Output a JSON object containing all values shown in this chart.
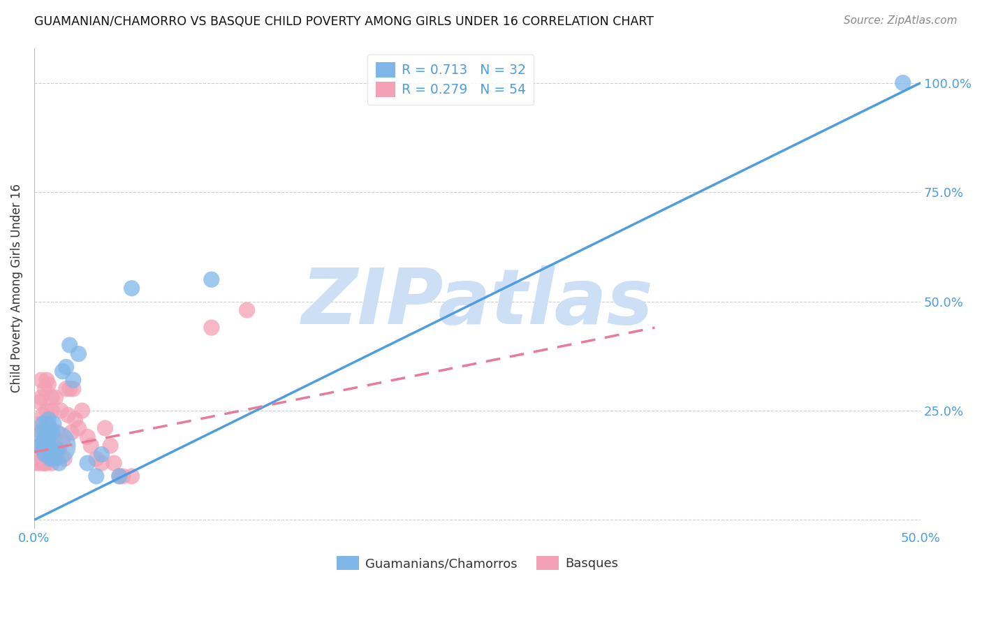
{
  "title": "GUAMANIAN/CHAMORRO VS BASQUE CHILD POVERTY AMONG GIRLS UNDER 16 CORRELATION CHART",
  "source": "Source: ZipAtlas.com",
  "ylabel": "Child Poverty Among Girls Under 16",
  "xlim": [
    0.0,
    0.5
  ],
  "ylim": [
    -0.02,
    1.08
  ],
  "xticks": [
    0.0,
    0.1,
    0.2,
    0.3,
    0.4,
    0.5
  ],
  "xtick_labels": [
    "0.0%",
    "",
    "",
    "",
    "",
    "50.0%"
  ],
  "yticks": [
    0.0,
    0.25,
    0.5,
    0.75,
    1.0
  ],
  "ytick_labels_right": [
    "",
    "25.0%",
    "50.0%",
    "75.0%",
    "100.0%"
  ],
  "guamanian_R": 0.713,
  "guamanian_N": 32,
  "basque_R": 0.279,
  "basque_N": 54,
  "guamanian_color": "#7eb6e8",
  "basque_color": "#f4a0b5",
  "guamanian_line_color": "#4d9de0",
  "basque_line_color": "#e87a9a",
  "watermark": "ZIPatlas",
  "watermark_color": "#ccdff5",
  "legend_label_guamanian": "Guamanians/Chamorros",
  "legend_label_basque": "Basques",
  "tick_color": "#4d9de0",
  "guamanian_x": [
    0.003,
    0.004,
    0.005,
    0.005,
    0.006,
    0.006,
    0.007,
    0.007,
    0.008,
    0.008,
    0.008,
    0.009,
    0.009,
    0.01,
    0.01,
    0.011,
    0.011,
    0.012,
    0.013,
    0.014,
    0.016,
    0.018,
    0.02,
    0.022,
    0.025,
    0.03,
    0.035,
    0.038,
    0.048,
    0.055,
    0.1,
    0.49
  ],
  "guamanian_y": [
    0.17,
    0.2,
    0.18,
    0.22,
    0.15,
    0.2,
    0.18,
    0.22,
    0.16,
    0.19,
    0.23,
    0.14,
    0.21,
    0.16,
    0.2,
    0.14,
    0.22,
    0.17,
    0.16,
    0.13,
    0.34,
    0.35,
    0.4,
    0.32,
    0.38,
    0.13,
    0.1,
    0.15,
    0.1,
    0.53,
    0.55,
    1.0
  ],
  "guamanian_sizes": [
    40,
    40,
    40,
    40,
    40,
    40,
    40,
    40,
    40,
    40,
    40,
    40,
    40,
    40,
    40,
    40,
    40,
    250,
    40,
    40,
    40,
    40,
    40,
    40,
    40,
    40,
    40,
    40,
    40,
    40,
    40,
    40
  ],
  "basque_x": [
    0.001,
    0.002,
    0.002,
    0.003,
    0.003,
    0.003,
    0.004,
    0.004,
    0.004,
    0.005,
    0.005,
    0.005,
    0.006,
    0.006,
    0.006,
    0.007,
    0.007,
    0.007,
    0.008,
    0.008,
    0.008,
    0.009,
    0.009,
    0.01,
    0.01,
    0.01,
    0.011,
    0.012,
    0.012,
    0.013,
    0.014,
    0.015,
    0.016,
    0.017,
    0.018,
    0.019,
    0.02,
    0.021,
    0.022,
    0.023,
    0.025,
    0.027,
    0.03,
    0.032,
    0.035,
    0.038,
    0.04,
    0.043,
    0.045,
    0.048,
    0.05,
    0.055,
    0.1,
    0.12
  ],
  "basque_y": [
    0.13,
    0.15,
    0.2,
    0.13,
    0.22,
    0.27,
    0.14,
    0.28,
    0.32,
    0.13,
    0.16,
    0.24,
    0.13,
    0.19,
    0.3,
    0.13,
    0.25,
    0.32,
    0.14,
    0.19,
    0.31,
    0.14,
    0.21,
    0.13,
    0.25,
    0.28,
    0.17,
    0.14,
    0.28,
    0.2,
    0.16,
    0.25,
    0.18,
    0.14,
    0.3,
    0.24,
    0.3,
    0.2,
    0.3,
    0.23,
    0.21,
    0.25,
    0.19,
    0.17,
    0.14,
    0.13,
    0.21,
    0.17,
    0.13,
    0.1,
    0.1,
    0.1,
    0.44,
    0.48
  ],
  "basque_sizes": [
    40,
    40,
    40,
    40,
    40,
    40,
    40,
    40,
    40,
    40,
    40,
    40,
    40,
    40,
    40,
    40,
    40,
    40,
    40,
    40,
    40,
    40,
    40,
    40,
    40,
    40,
    40,
    40,
    40,
    40,
    40,
    40,
    40,
    40,
    40,
    40,
    40,
    40,
    40,
    40,
    40,
    40,
    40,
    40,
    40,
    40,
    40,
    40,
    40,
    40,
    40,
    40,
    40,
    40
  ],
  "guam_line_x": [
    0.0,
    0.5
  ],
  "guam_line_y": [
    0.0,
    1.0
  ],
  "basque_line_x": [
    0.0,
    0.35
  ],
  "basque_line_y": [
    0.155,
    0.44
  ]
}
